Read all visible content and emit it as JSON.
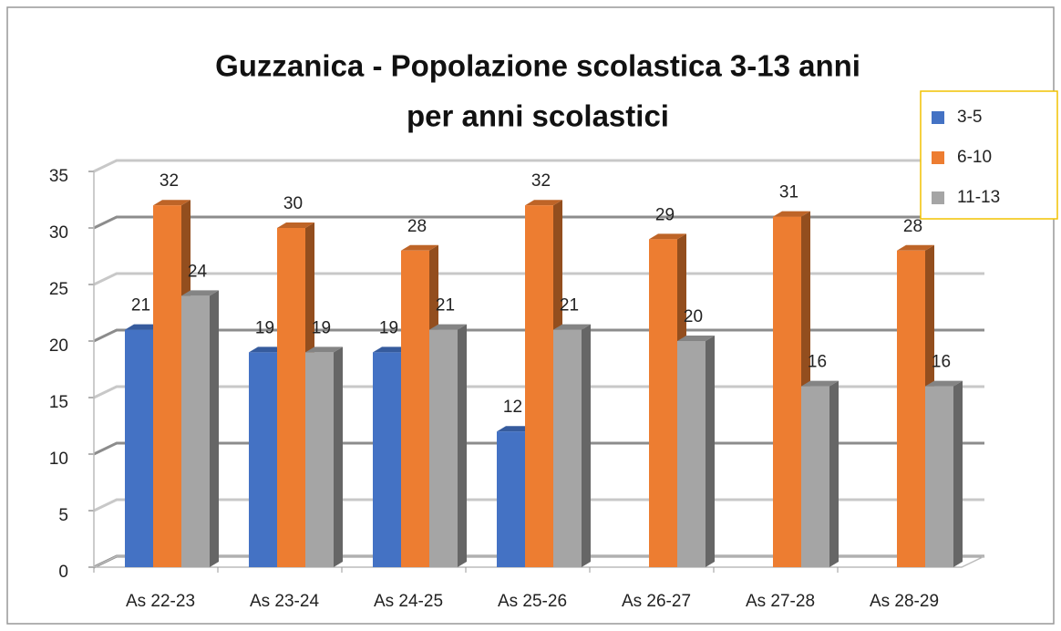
{
  "chart_data": {
    "type": "bar3d",
    "title": [
      "Guzzanica - Popolazione  scolastica 3-13 anni",
      "per anni scolastici"
    ],
    "categories": [
      "As 22-23",
      "As 23-24",
      "As 24-25",
      "As 25-26",
      "As 26-27",
      "As 27-28",
      "As 28-29"
    ],
    "series": [
      {
        "name": "3-5",
        "color": "#4472c4",
        "values": [
          21,
          19,
          19,
          12,
          null,
          null,
          null
        ]
      },
      {
        "name": "6-10",
        "color": "#ed7d31",
        "values": [
          32,
          30,
          28,
          32,
          29,
          31,
          28
        ]
      },
      {
        "name": "11-13",
        "color": "#a5a5a5",
        "values": [
          24,
          19,
          21,
          21,
          20,
          16,
          16
        ]
      }
    ],
    "ylim": [
      0,
      35
    ],
    "yticks": [
      0,
      5,
      10,
      15,
      20,
      25,
      30,
      35
    ],
    "grid": true,
    "legend": "right"
  }
}
